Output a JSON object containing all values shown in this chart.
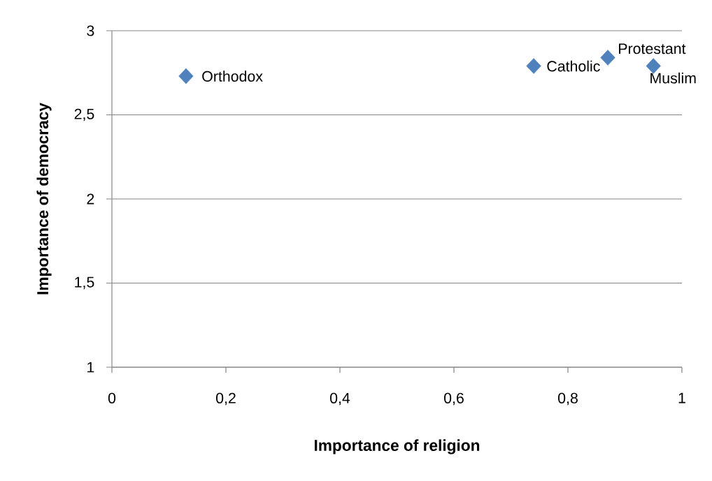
{
  "chart_data": {
    "type": "scatter",
    "xlabel": "Importance of religion",
    "ylabel": "Importance of democracy",
    "x": [
      0.13,
      0.74,
      0.87,
      0.95
    ],
    "values": [
      2.73,
      2.79,
      2.84,
      2.79
    ],
    "color": "#4f81bd",
    "marker": "diamond",
    "xlim": [
      0,
      1
    ],
    "ylim": [
      1,
      3
    ],
    "xticks": [
      0,
      {
        "value": 0.2,
        "label": "0,2"
      },
      {
        "value": 0.4,
        "label": "0,4"
      },
      {
        "value": 0.6,
        "label": "0,6"
      },
      {
        "value": 0.8,
        "label": "0,8"
      },
      1
    ],
    "yticks": [
      1,
      {
        "value": 1.5,
        "label": "1,5"
      },
      2,
      {
        "value": 2.5,
        "label": "2,5"
      },
      3
    ],
    "grid": "y",
    "annotations": [
      {
        "text": "Orthodox",
        "x": 0.13,
        "y": 2.73
      },
      {
        "text": "Catholic",
        "x": 0.74,
        "y": 2.79
      },
      {
        "text": "Protestant",
        "x": 0.87,
        "y": 2.84
      },
      {
        "text": "Muslim",
        "x": 0.95,
        "y": 2.79
      }
    ]
  }
}
